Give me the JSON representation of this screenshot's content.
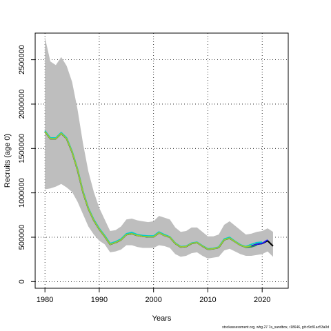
{
  "footer_text": "stockassessment.org, whg.27.7a_sandbox, r18646, git:c9c81ac53a0d",
  "chart_data": {
    "type": "line",
    "title": "",
    "xlabel": "Years",
    "ylabel": "Recruits (age 0)",
    "xlim": [
      1978.2,
      2024.8
    ],
    "ylim": [
      -75000,
      2800000
    ],
    "x_ticks": [
      1980,
      1990,
      2000,
      2010,
      2020
    ],
    "y_ticks": [
      0,
      500000,
      1000000,
      1500000,
      2000000,
      2500000
    ],
    "grid": true,
    "grid_style": "dotted",
    "band": {
      "color": "#bebebe",
      "x": [
        1980,
        1981,
        1982,
        1983,
        1984,
        1985,
        1986,
        1987,
        1988,
        1989,
        1990,
        1991,
        1992,
        1993,
        1994,
        1995,
        1996,
        1997,
        1998,
        1999,
        2000,
        2001,
        2002,
        2003,
        2004,
        2005,
        2006,
        2007,
        2008,
        2009,
        2010,
        2011,
        2012,
        2013,
        2014,
        2015,
        2016,
        2017,
        2018,
        2019,
        2020,
        2021,
        2022
      ],
      "lower": [
        1040000,
        1050000,
        1070000,
        1100000,
        1060000,
        1010000,
        900000,
        760000,
        620000,
        530000,
        460000,
        420000,
        330000,
        340000,
        360000,
        410000,
        410000,
        390000,
        380000,
        380000,
        380000,
        410000,
        400000,
        380000,
        310000,
        280000,
        290000,
        320000,
        330000,
        290000,
        260000,
        270000,
        280000,
        350000,
        370000,
        340000,
        310000,
        290000,
        290000,
        300000,
        310000,
        340000,
        280000
      ],
      "upper": [
        2750000,
        2480000,
        2440000,
        2530000,
        2430000,
        2250000,
        1940000,
        1560000,
        1240000,
        1010000,
        830000,
        700000,
        570000,
        580000,
        620000,
        700000,
        710000,
        690000,
        680000,
        670000,
        680000,
        740000,
        720000,
        700000,
        610000,
        560000,
        570000,
        610000,
        610000,
        560000,
        510000,
        510000,
        530000,
        640000,
        680000,
        630000,
        580000,
        530000,
        540000,
        560000,
        570000,
        600000,
        560000
      ]
    },
    "series": [
      {
        "color": "#000000",
        "x": [
          1980,
          1981,
          1982,
          1983,
          1984,
          1985,
          1986,
          1987,
          1988,
          1989,
          1990,
          1991,
          1992,
          1993,
          1994,
          1995,
          1996,
          1997,
          1998,
          1999,
          2000,
          2001,
          2002,
          2003,
          2004,
          2005,
          2006,
          2007,
          2008,
          2009,
          2010,
          2011,
          2012,
          2013,
          2014,
          2015,
          2016,
          2017,
          2018,
          2019,
          2020,
          2021,
          2022
        ],
        "y": [
          1690000,
          1610000,
          1610000,
          1670000,
          1610000,
          1460000,
          1260000,
          1010000,
          820000,
          690000,
          590000,
          510000,
          420000,
          440000,
          470000,
          530000,
          540000,
          520000,
          510000,
          505000,
          505000,
          550000,
          520000,
          500000,
          430000,
          390000,
          395000,
          430000,
          440000,
          400000,
          365000,
          370000,
          385000,
          470000,
          490000,
          450000,
          410000,
          390000,
          400000,
          420000,
          430000,
          460000,
          400000
        ]
      },
      {
        "color": "#1a1aff",
        "x": [
          1980,
          1981,
          1982,
          1983,
          1984,
          1985,
          1986,
          1987,
          1988,
          1989,
          1990,
          1991,
          1992,
          1993,
          1994,
          1995,
          1996,
          1997,
          1998,
          1999,
          2000,
          2001,
          2002,
          2003,
          2004,
          2005,
          2006,
          2007,
          2008,
          2009,
          2010,
          2011,
          2012,
          2013,
          2014,
          2015,
          2016,
          2017,
          2018,
          2019,
          2020,
          2021
        ],
        "y": [
          1690000,
          1610000,
          1610000,
          1670000,
          1610000,
          1460000,
          1260000,
          1010000,
          820000,
          690000,
          590000,
          510000,
          420000,
          440000,
          470000,
          530000,
          540000,
          520000,
          510000,
          505000,
          505000,
          550000,
          520000,
          500000,
          430000,
          390000,
          395000,
          430000,
          440000,
          400000,
          365000,
          370000,
          385000,
          470000,
          490000,
          450000,
          410000,
          390000,
          400000,
          420000,
          430000,
          470000
        ]
      },
      {
        "color": "#00cdcd",
        "x": [
          1980,
          1981,
          1982,
          1983,
          1984,
          1985,
          1986,
          1987,
          1988,
          1989,
          1990,
          1991,
          1992,
          1993,
          1994,
          1995,
          1996,
          1997,
          1998,
          1999,
          2000,
          2001,
          2002,
          2003,
          2004,
          2005,
          2006,
          2007,
          2008,
          2009,
          2010,
          2011,
          2012,
          2013,
          2014,
          2015,
          2016,
          2017,
          2018,
          2019,
          2020
        ],
        "y": [
          1700000,
          1620000,
          1620000,
          1680000,
          1620000,
          1470000,
          1270000,
          1020000,
          830000,
          700000,
          600000,
          520000,
          430000,
          450000,
          480000,
          540000,
          555000,
          530000,
          520000,
          515000,
          515000,
          560000,
          530000,
          505000,
          435000,
          395000,
          400000,
          435000,
          445000,
          405000,
          370000,
          375000,
          390000,
          480000,
          500000,
          455000,
          415000,
          395000,
          420000,
          440000,
          445000
        ]
      },
      {
        "color": "#2e8b57",
        "x": [
          1980,
          1981,
          1982,
          1983,
          1984,
          1985,
          1986,
          1987,
          1988,
          1989,
          1990,
          1991,
          1992,
          1993,
          1994,
          1995,
          1996,
          1997,
          1998,
          1999,
          2000,
          2001,
          2002,
          2003,
          2004,
          2005,
          2006,
          2007,
          2008,
          2009,
          2010,
          2011,
          2012,
          2013,
          2014,
          2015,
          2016,
          2017,
          2018,
          2019
        ],
        "y": [
          1690000,
          1610000,
          1610000,
          1670000,
          1610000,
          1460000,
          1260000,
          1010000,
          820000,
          690000,
          590000,
          510000,
          420000,
          440000,
          470000,
          530000,
          540000,
          520000,
          510000,
          505000,
          505000,
          550000,
          520000,
          500000,
          430000,
          390000,
          395000,
          430000,
          440000,
          400000,
          365000,
          370000,
          385000,
          470000,
          490000,
          450000,
          410000,
          385000,
          390000,
          410000
        ]
      },
      {
        "color": "#9acd32",
        "x": [
          1980,
          1981,
          1982,
          1983,
          1984,
          1985,
          1986,
          1987,
          1988,
          1989,
          1990,
          1991,
          1992,
          1993,
          1994,
          1995,
          1996,
          1997,
          1998,
          1999,
          2000,
          2001,
          2002,
          2003,
          2004,
          2005,
          2006,
          2007,
          2008,
          2009,
          2010,
          2011,
          2012,
          2013,
          2014,
          2015,
          2016,
          2017,
          2018
        ],
        "y": [
          1690000,
          1610000,
          1610000,
          1670000,
          1610000,
          1460000,
          1260000,
          1010000,
          820000,
          690000,
          590000,
          510000,
          420000,
          440000,
          470000,
          530000,
          540000,
          520000,
          510000,
          505000,
          505000,
          550000,
          520000,
          500000,
          430000,
          390000,
          395000,
          430000,
          440000,
          400000,
          365000,
          370000,
          385000,
          470000,
          490000,
          450000,
          410000,
          390000,
          405000
        ]
      }
    ]
  }
}
